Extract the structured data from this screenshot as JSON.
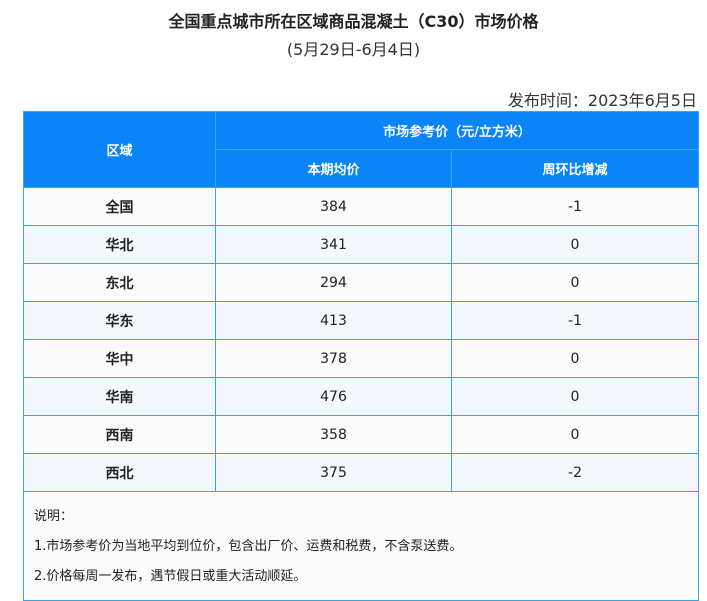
{
  "title": "全国重点城市所在区域商品混凝土（C30）市场价格",
  "subtitle": "(5月29日-6月4日)",
  "publish_date": "发布时间：2023年6月5日",
  "table": {
    "header_region": "区域",
    "header_group": "市场参考价（元/立方米）",
    "header_avg": "本期均价",
    "header_change": "周环比增减",
    "rows": [
      {
        "region": "全国",
        "avg": "384",
        "change": "-1"
      },
      {
        "region": "华北",
        "avg": "341",
        "change": "0"
      },
      {
        "region": "东北",
        "avg": "294",
        "change": "0"
      },
      {
        "region": "华东",
        "avg": "413",
        "change": "-1"
      },
      {
        "region": "华中",
        "avg": "378",
        "change": "0"
      },
      {
        "region": "华南",
        "avg": "476",
        "change": "0"
      },
      {
        "region": "西南",
        "avg": "358",
        "change": "0"
      },
      {
        "region": "西北",
        "avg": "375",
        "change": "-2"
      }
    ]
  },
  "notes": {
    "heading": "说明：",
    "items": [
      "1.市场参考价为当地平均到位价，包含出厂价、运费和税费，不含泵送费。",
      "2.价格每周一发布，遇节假日或重大活动顺延。"
    ]
  },
  "colors": {
    "header": "#0a84f7",
    "border": "#3ba6dc",
    "row_alt": "#f4f8fd"
  }
}
